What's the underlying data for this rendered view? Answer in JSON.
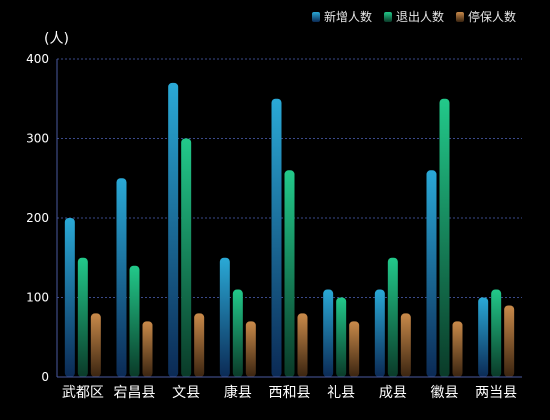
{
  "chart_data": {
    "type": "bar",
    "ylabel": "(人)",
    "ylim": [
      0,
      400
    ],
    "yticks": [
      0,
      100,
      200,
      300,
      400
    ],
    "categories": [
      "武都区",
      "宕昌县",
      "文县",
      "康县",
      "西和县",
      "礼县",
      "成县",
      "徽县",
      "两当县"
    ],
    "series": [
      {
        "name": "新增人数",
        "values": [
          200,
          250,
          370,
          150,
          350,
          110,
          110,
          260,
          100
        ],
        "color_top": "#2aa9d6",
        "color_bottom": "#0b2a55"
      },
      {
        "name": "退出人数",
        "values": [
          150,
          140,
          300,
          110,
          260,
          100,
          150,
          350,
          110
        ],
        "color_top": "#22c98a",
        "color_bottom": "#0a3a28"
      },
      {
        "name": "停保人数",
        "values": [
          80,
          70,
          80,
          70,
          80,
          70,
          80,
          70,
          90
        ],
        "color_top": "#c98a4a",
        "color_bottom": "#3a2410"
      }
    ],
    "legend_position": "top-right",
    "grid": true
  }
}
